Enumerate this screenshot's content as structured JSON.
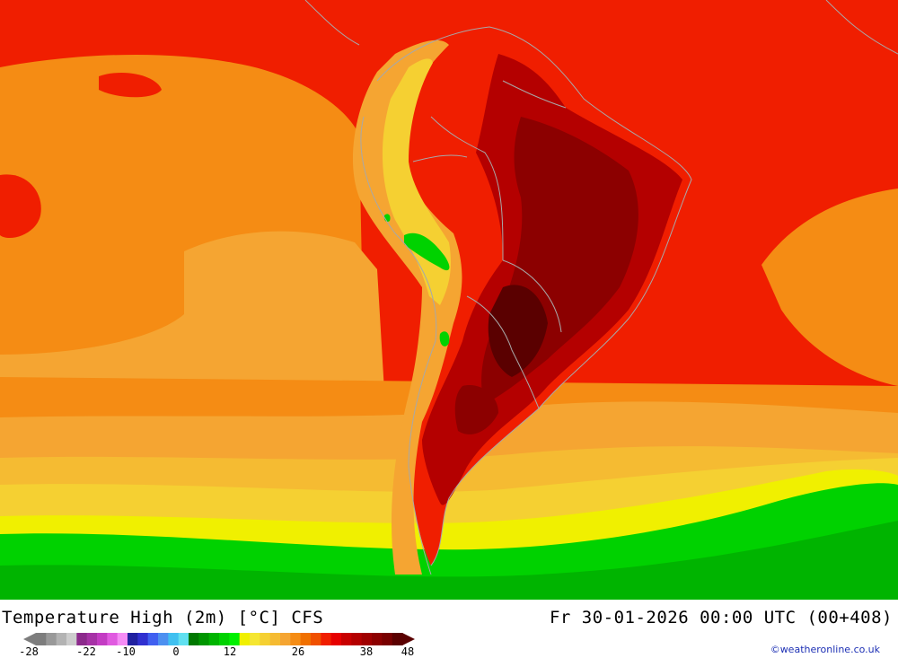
{
  "title": "Temperature High (2m) [°C] CFS",
  "valid_time": "Fr 30-01-2026 00:00 UTC (00+408)",
  "credit": "©weatheronline.co.uk",
  "legend": {
    "ticks": [
      "-28",
      "-22",
      "-10",
      "0",
      "12",
      "26",
      "38",
      "48"
    ],
    "colors": [
      "#7d7d7d",
      "#999999",
      "#b3b3b3",
      "#cdcdcd",
      "#8c2a8c",
      "#a632a6",
      "#c33cc3",
      "#e05ae0",
      "#f58cf5",
      "#2020a0",
      "#3030d0",
      "#4060f0",
      "#4d90f0",
      "#40c0f0",
      "#60e0f0",
      "#007800",
      "#009600",
      "#00b400",
      "#00d200",
      "#00f000",
      "#f0f000",
      "#f5e632",
      "#f5d032",
      "#f5bb32",
      "#f5a532",
      "#f58c14",
      "#f07000",
      "#f05000",
      "#f01e00",
      "#e60000",
      "#c80000",
      "#b40000",
      "#a00000",
      "#8c0000",
      "#780000",
      "#5a0000"
    ]
  },
  "map_colors": {
    "ocean_red": "#f01e00",
    "orange": "#f58c14",
    "light_orange": "#f5a532",
    "amber": "#f5bb32",
    "gold": "#f5d032",
    "yellow": "#f0f000",
    "green": "#00d200",
    "dark_green": "#00b400",
    "dark_red": "#b40000",
    "deep_red": "#8c0000",
    "maroon": "#5a0000",
    "border": "#a8a8a8"
  }
}
